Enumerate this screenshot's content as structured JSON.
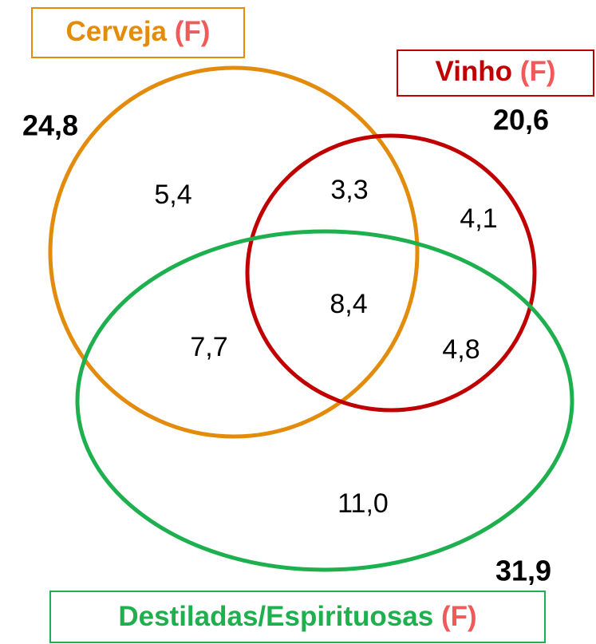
{
  "sets": [
    {
      "name": "Cerveja",
      "suffix": "(F)",
      "total": "24,8"
    },
    {
      "name": "Vinho",
      "suffix": "(F)",
      "total": "20,6"
    },
    {
      "name": "Destiladas/Espirituosas",
      "suffix": "(F)",
      "total": "31,9"
    }
  ],
  "regions": {
    "cerveja_only": "5,4",
    "cerveja_vinho": "3,3",
    "vinho_only": "4,1",
    "all_three": "8,4",
    "cerveja_destiladas": "7,7",
    "vinho_destiladas": "4,8",
    "destiladas_only": "11,0"
  }
}
